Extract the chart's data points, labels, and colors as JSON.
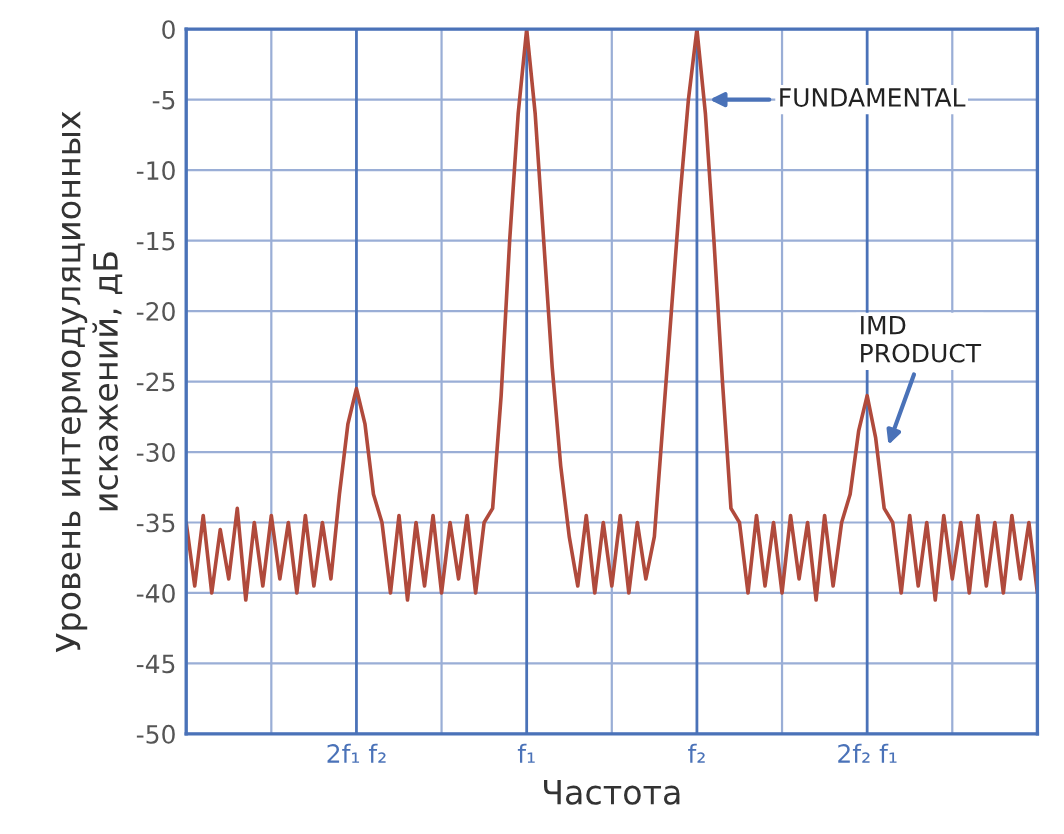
{
  "chart_data": {
    "type": "line",
    "xlabel": "Частота",
    "ylabel": "Уровень интермодуляционных\nискажений, дБ",
    "categories": [
      null,
      null,
      null,
      null,
      null,
      null,
      null,
      null,
      null,
      null,
      null,
      null,
      null,
      null,
      null,
      null,
      null,
      null,
      null,
      null,
      "2f₁ f₂",
      null,
      null,
      null,
      null,
      null,
      null,
      null,
      null,
      null,
      null,
      null,
      null,
      null,
      null,
      null,
      null,
      null,
      null,
      null,
      "f₁",
      null,
      null,
      null,
      null,
      null,
      null,
      null,
      null,
      null,
      null,
      null,
      null,
      null,
      null,
      null,
      null,
      null,
      null,
      null,
      "f₂",
      null,
      null,
      null,
      null,
      null,
      null,
      null,
      null,
      null,
      null,
      null,
      null,
      null,
      null,
      null,
      null,
      null,
      null,
      null,
      "2f₂ f₁",
      null,
      null,
      null,
      null,
      null,
      null,
      null,
      null,
      null,
      null,
      null,
      null,
      null,
      null,
      null,
      null,
      null,
      null,
      null,
      null
    ],
    "ylim": [
      -50,
      0
    ],
    "yticks": [
      -50,
      -45,
      -40,
      -35,
      -30,
      -25,
      -20,
      -15,
      -10,
      -5,
      0
    ],
    "grid": true,
    "marker": "none",
    "line_style": "solid",
    "series": [
      {
        "color": "#b04a3c",
        "values": [
          -35,
          -39.5,
          -34.5,
          -40,
          -35.5,
          -39,
          -34,
          -40.5,
          -35,
          -39.5,
          -34.5,
          -39,
          -35,
          -40,
          -34.5,
          -39.5,
          -35,
          -39,
          -33,
          -28,
          -25.5,
          -28,
          -33,
          -35,
          -40,
          -34.5,
          -40.5,
          -35,
          -39.5,
          -34.5,
          -40,
          -35,
          -39,
          -34.5,
          -40,
          -35,
          -34,
          -26,
          -15,
          -6,
          0,
          -6,
          -15,
          -24,
          -31,
          -36,
          -39.5,
          -34.5,
          -40,
          -35,
          -39.5,
          -34.5,
          -40,
          -35,
          -39,
          -36,
          -28,
          -20,
          -12,
          -5,
          0,
          -6,
          -15,
          -25,
          -34,
          -35,
          -40,
          -34.5,
          -39.5,
          -35,
          -40,
          -34.5,
          -39,
          -35,
          -40.5,
          -34.5,
          -39.5,
          -35,
          -33,
          -28.5,
          -26,
          -29,
          -34,
          -35,
          -40,
          -34.5,
          -39.5,
          -35,
          -40.5,
          -34.5,
          -39,
          -35,
          -40,
          -34.5,
          -39.5,
          -35,
          -40,
          -34.5,
          -39,
          -35,
          -40
        ]
      }
    ],
    "annotations": [
      "FUNDAMENTAL",
      "IMD\nPRODUCT"
    ]
  }
}
